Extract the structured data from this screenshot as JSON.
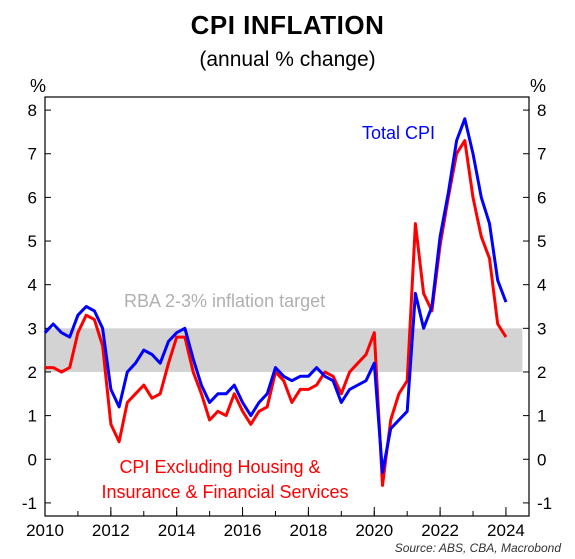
{
  "title": "CPI INFLATION",
  "subtitle": "(annual % change)",
  "unit_left": "%",
  "unit_right": "%",
  "source": "Source: ABS, CBA, Macrobond",
  "colors": {
    "total_cpi": "#0000ff",
    "cpi_ex": "#ff0000",
    "target_band": "#d3d3d3",
    "target_text": "#b0b0b0"
  },
  "chart_data": {
    "type": "line",
    "title": "CPI INFLATION",
    "subtitle": "(annual % change)",
    "xlim": [
      2010,
      2024.7
    ],
    "ylim": [
      -1.3,
      8.3
    ],
    "x_ticks": [
      2010,
      2012,
      2014,
      2016,
      2018,
      2020,
      2022,
      2024
    ],
    "y_ticks": [
      -1,
      0,
      1,
      2,
      3,
      4,
      5,
      6,
      7,
      8
    ],
    "target_band": {
      "label": "RBA 2-3% inflation target",
      "low": 2,
      "high": 3,
      "x_start": 2010,
      "x_end": 2024.5
    },
    "series": [
      {
        "name": "Total CPI",
        "color": "#0000ff",
        "x": [
          2010.0,
          2010.25,
          2010.5,
          2010.75,
          2011.0,
          2011.25,
          2011.5,
          2011.75,
          2012.0,
          2012.25,
          2012.5,
          2012.75,
          2013.0,
          2013.25,
          2013.5,
          2013.75,
          2014.0,
          2014.25,
          2014.5,
          2014.75,
          2015.0,
          2015.25,
          2015.5,
          2015.75,
          2016.0,
          2016.25,
          2016.5,
          2016.75,
          2017.0,
          2017.25,
          2017.5,
          2017.75,
          2018.0,
          2018.25,
          2018.5,
          2018.75,
          2019.0,
          2019.25,
          2019.5,
          2019.75,
          2020.0,
          2020.25,
          2020.5,
          2020.75,
          2021.0,
          2021.25,
          2021.5,
          2021.75,
          2022.0,
          2022.25,
          2022.5,
          2022.75,
          2023.0,
          2023.25,
          2023.5,
          2023.75,
          2024.0
        ],
        "y": [
          2.9,
          3.1,
          2.9,
          2.8,
          3.3,
          3.5,
          3.4,
          3.0,
          1.6,
          1.2,
          2.0,
          2.2,
          2.5,
          2.4,
          2.2,
          2.7,
          2.9,
          3.0,
          2.3,
          1.7,
          1.3,
          1.5,
          1.5,
          1.7,
          1.3,
          1.0,
          1.3,
          1.5,
          2.1,
          1.9,
          1.8,
          1.9,
          1.9,
          2.1,
          1.9,
          1.8,
          1.3,
          1.6,
          1.7,
          1.8,
          2.2,
          -0.3,
          0.7,
          0.9,
          1.1,
          3.8,
          3.0,
          3.5,
          5.1,
          6.1,
          7.3,
          7.8,
          7.0,
          6.0,
          5.4,
          4.1,
          3.6
        ]
      },
      {
        "name": "CPI Excluding Housing & Insurance & Financial Services",
        "label_lines": [
          "CPI Excluding Housing &",
          "Insurance & Financial Services"
        ],
        "color": "#ff0000",
        "x": [
          2010.0,
          2010.25,
          2010.5,
          2010.75,
          2011.0,
          2011.25,
          2011.5,
          2011.75,
          2012.0,
          2012.25,
          2012.5,
          2012.75,
          2013.0,
          2013.25,
          2013.5,
          2013.75,
          2014.0,
          2014.25,
          2014.5,
          2014.75,
          2015.0,
          2015.25,
          2015.5,
          2015.75,
          2016.0,
          2016.25,
          2016.5,
          2016.75,
          2017.0,
          2017.25,
          2017.5,
          2017.75,
          2018.0,
          2018.25,
          2018.5,
          2018.75,
          2019.0,
          2019.25,
          2019.5,
          2019.75,
          2020.0,
          2020.25,
          2020.5,
          2020.75,
          2021.0,
          2021.25,
          2021.5,
          2021.75,
          2022.0,
          2022.25,
          2022.5,
          2022.75,
          2023.0,
          2023.25,
          2023.5,
          2023.75,
          2024.0
        ],
        "y": [
          2.1,
          2.1,
          2.0,
          2.1,
          2.9,
          3.3,
          3.2,
          2.6,
          0.8,
          0.4,
          1.3,
          1.5,
          1.7,
          1.4,
          1.5,
          2.2,
          2.8,
          2.8,
          2.0,
          1.5,
          0.9,
          1.1,
          1.0,
          1.5,
          1.1,
          0.8,
          1.1,
          1.2,
          2.0,
          1.8,
          1.3,
          1.6,
          1.6,
          1.7,
          2.0,
          1.9,
          1.5,
          2.0,
          2.2,
          2.4,
          2.9,
          -0.6,
          0.9,
          1.5,
          1.8,
          5.4,
          3.8,
          3.4,
          4.9,
          6.0,
          7.0,
          7.3,
          6.0,
          5.1,
          4.6,
          3.1,
          2.8
        ]
      }
    ]
  }
}
